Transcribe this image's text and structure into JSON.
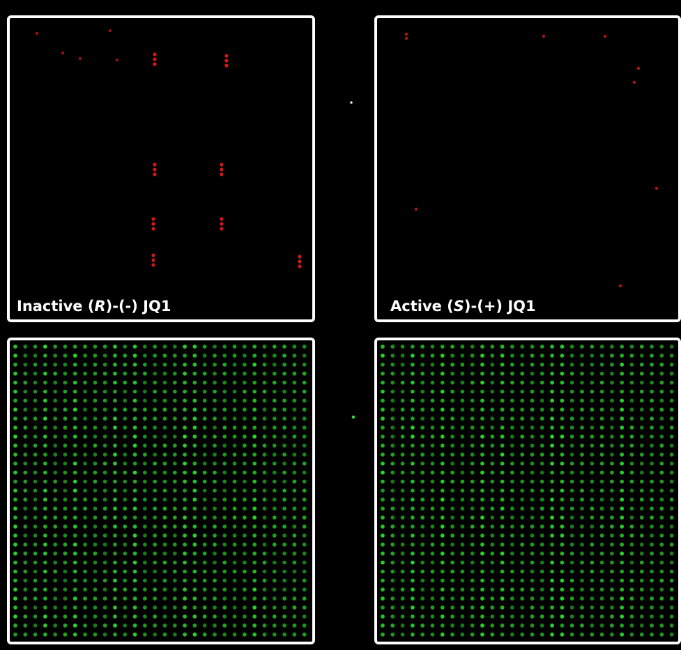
{
  "panels": [
    {
      "label": {
        "before": "Inactive (",
        "italic": "R",
        "after": ")-(-) JQ1"
      }
    },
    {
      "label": {
        "before": "Active (",
        "italic": "S",
        "after": ")-(+) JQ1"
      }
    }
  ]
}
